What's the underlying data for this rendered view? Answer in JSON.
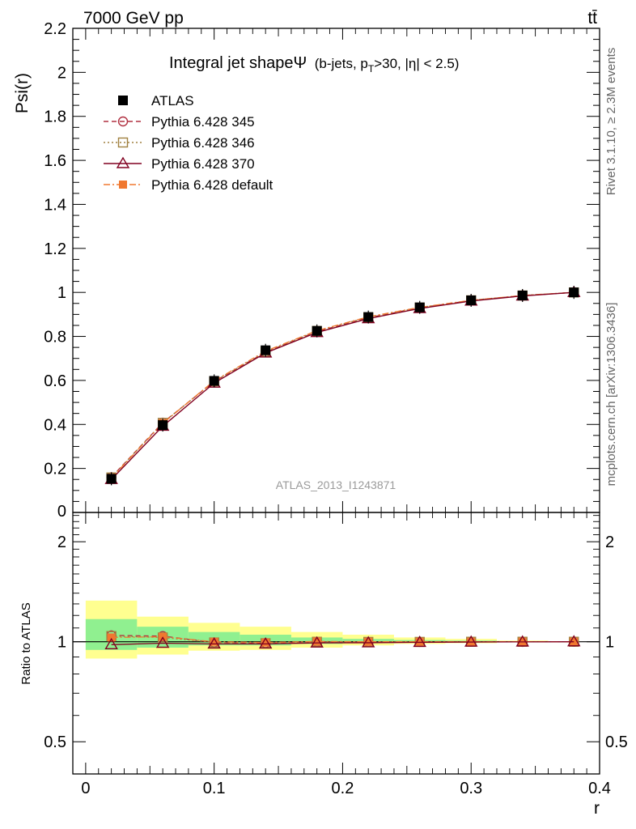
{
  "header": {
    "energy_label": "7000 GeV pp",
    "process_label": "tt̄"
  },
  "side_labels": {
    "rivet": "Rivet 3.1.10, ≥ 2.3M events",
    "mcplots": "mcplots.cern.ch [arXiv:1306.3436]"
  },
  "plot_title": {
    "main": "Integral jet shapeΨ",
    "sub_prefix": "(b-jets, p",
    "sub_subscript": "T",
    "sub_suffix": ">30, |η| < 2.5)"
  },
  "watermark": "ATLAS_2013_I1243871",
  "legend": [
    {
      "key": "atlas",
      "label": "ATLAS"
    },
    {
      "key": "p345",
      "label": "Pythia 6.428 345"
    },
    {
      "key": "p346",
      "label": "Pythia 6.428 346"
    },
    {
      "key": "p370",
      "label": "Pythia 6.428 370"
    },
    {
      "key": "pdef",
      "label": "Pythia 6.428 default"
    }
  ],
  "colors": {
    "atlas": "#000000",
    "p345": "#b03040",
    "p346": "#a08040",
    "p370": "#800020",
    "pdef": "#f07830",
    "band_inner": "#90f090",
    "band_outer": "#ffff90"
  },
  "chart_data": {
    "type": "line",
    "x": [
      0.02,
      0.06,
      0.1,
      0.14,
      0.18,
      0.22,
      0.26,
      0.3,
      0.34,
      0.38
    ],
    "x_bin_edges": [
      0.0,
      0.04,
      0.08,
      0.12,
      0.16,
      0.2,
      0.24,
      0.28,
      0.32,
      0.36,
      0.4
    ],
    "xlabel": "r",
    "ylabel": "Psi(r)",
    "xlim": [
      -0.01,
      0.4
    ],
    "ylim": [
      0,
      2.2
    ],
    "x_ticks": [
      "0",
      "0.1",
      "0.2",
      "0.3",
      "0.4"
    ],
    "y_ticks": [
      "0.2",
      "0.4",
      "0.6",
      "0.8",
      "1",
      "1.2",
      "1.4",
      "1.6",
      "1.8",
      "2",
      "2.2"
    ],
    "y_zero_label": "0",
    "series": [
      {
        "name": "ATLAS",
        "key": "atlas",
        "values": [
          0.153,
          0.397,
          0.598,
          0.737,
          0.825,
          0.888,
          0.932,
          0.964,
          0.986,
          1.0
        ]
      },
      {
        "name": "Pythia 6.428 345",
        "key": "p345",
        "values": [
          0.16,
          0.408,
          0.595,
          0.728,
          0.822,
          0.885,
          0.93,
          0.963,
          0.985,
          1.0
        ]
      },
      {
        "name": "Pythia 6.428 346",
        "key": "p346",
        "values": [
          0.159,
          0.407,
          0.596,
          0.73,
          0.825,
          0.887,
          0.931,
          0.964,
          0.986,
          1.0
        ]
      },
      {
        "name": "Pythia 6.428 370",
        "key": "p370",
        "values": [
          0.15,
          0.392,
          0.588,
          0.725,
          0.818,
          0.881,
          0.927,
          0.961,
          0.984,
          1.0
        ]
      },
      {
        "name": "Pythia 6.428 default",
        "key": "pdef",
        "values": [
          0.157,
          0.405,
          0.598,
          0.733,
          0.826,
          0.889,
          0.932,
          0.964,
          0.986,
          1.0
        ]
      }
    ],
    "ratio": {
      "ylabel": "Ratio to ATLAS",
      "y_ticks": [
        "0.5",
        "1",
        "2"
      ],
      "series": [
        {
          "key": "p345",
          "values": [
            1.045,
            1.04,
            0.995,
            0.99,
            1.0,
            0.997,
            0.999,
            1.0,
            0.999,
            1.0
          ]
        },
        {
          "key": "p346",
          "values": [
            1.04,
            1.03,
            0.995,
            0.99,
            1.0,
            0.999,
            0.999,
            1.0,
            1.0,
            1.0
          ]
        },
        {
          "key": "p370",
          "values": [
            0.98,
            0.99,
            0.985,
            0.985,
            0.992,
            0.993,
            0.996,
            0.998,
            0.999,
            1.0
          ]
        },
        {
          "key": "pdef",
          "values": [
            1.03,
            1.035,
            1.0,
            0.995,
            1.002,
            1.0,
            1.0,
            1.0,
            1.0,
            1.0
          ]
        }
      ],
      "band_inner_lo": [
        0.945,
        0.96,
        0.975,
        0.975,
        0.985,
        0.99,
        0.993,
        0.995,
        0.998,
        1.0
      ],
      "band_inner_hi": [
        1.17,
        1.11,
        1.07,
        1.05,
        1.03,
        1.02,
        1.012,
        1.008,
        1.004,
        1.0
      ],
      "band_outer_lo": [
        0.89,
        0.915,
        0.94,
        0.945,
        0.96,
        0.975,
        0.985,
        0.99,
        0.996,
        1.0
      ],
      "band_outer_hi": [
        1.33,
        1.19,
        1.14,
        1.11,
        1.07,
        1.05,
        1.03,
        1.02,
        1.008,
        1.0
      ]
    }
  }
}
